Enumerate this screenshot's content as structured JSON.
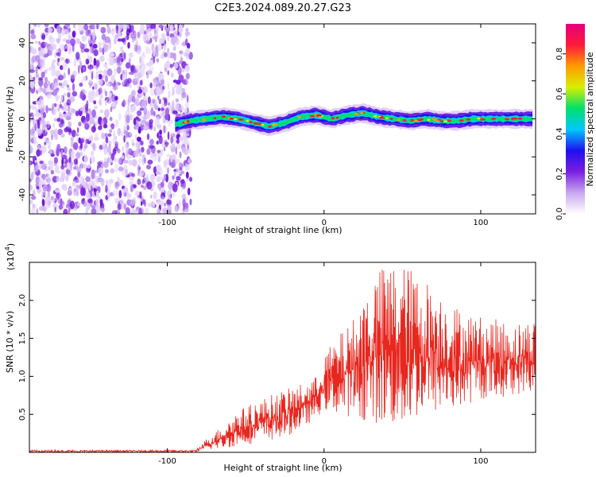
{
  "figure": {
    "title": "C2E3.2024.089.20.27.G23"
  },
  "chart_data": [
    {
      "type": "heatmap",
      "xlabel": "Height of straight line (km)",
      "ylabel": "Frequency (Hz)",
      "xlim": [
        -188,
        135
      ],
      "ylim": [
        -50,
        50
      ],
      "xticks": [
        -100,
        0,
        100
      ],
      "yticks": [
        -40,
        -20,
        0,
        20,
        40
      ],
      "x_tick_labels": [
        "-100",
        "0",
        "100"
      ],
      "y_tick_labels": [
        "-40",
        "-20",
        "0",
        "20",
        "40"
      ],
      "noise_region_x": [
        -188,
        -87
      ],
      "signal_region_x": [
        -95,
        133
      ],
      "frequency_trace": {
        "x": [
          -95,
          -85,
          -75,
          -65,
          -55,
          -45,
          -35,
          -25,
          -15,
          -5,
          5,
          15,
          25,
          35,
          45,
          55,
          65,
          75,
          85,
          95,
          105,
          115,
          125,
          133
        ],
        "y": [
          -3,
          -1,
          0,
          1,
          0,
          -2,
          -4,
          -2,
          1,
          2,
          0,
          2,
          3,
          1,
          0,
          -1,
          0,
          -1,
          -1,
          0,
          0,
          0,
          0,
          0
        ]
      },
      "colorbar": {
        "label": "Normalized spectral amplitude",
        "range": [
          0,
          0.95
        ],
        "ticks": [
          0.0,
          0.2,
          0.4,
          0.6,
          0.8
        ],
        "tick_labels": [
          "0.0",
          "0.2",
          "0.4",
          "0.6",
          "0.8"
        ],
        "colors": [
          "#ffffff",
          "#c9a7f0",
          "#7a1fe0",
          "#1e10f0",
          "#00c8ff",
          "#00e06a",
          "#d8f000",
          "#ff9a00",
          "#ff1a3a",
          "#e5007e"
        ]
      },
      "grid": false
    },
    {
      "type": "line",
      "xlabel": "Height of straight line (km)",
      "ylabel": "SNR (10 * v/v)",
      "y_multiplier": "(x10",
      "y_multiplier_exp": "4",
      "y_multiplier_close": ")",
      "xlim": [
        -188,
        135
      ],
      "ylim": [
        0,
        2.5
      ],
      "xticks": [
        -100,
        0,
        100
      ],
      "yticks": [
        0.5,
        1.0,
        1.5,
        2.0
      ],
      "x_tick_labels": [
        "-100",
        "0",
        "100"
      ],
      "y_tick_labels": [
        "0.5",
        "1.0",
        "1.5",
        "2.0"
      ],
      "line_color": "#e8271f",
      "envelope": {
        "x": [
          -188,
          -150,
          -100,
          -82,
          -75,
          -65,
          -55,
          -45,
          -35,
          -25,
          -15,
          -5,
          0,
          10,
          20,
          30,
          40,
          50,
          60,
          70,
          80,
          90,
          100,
          110,
          120,
          133
        ],
        "low": [
          0.0,
          0.0,
          0.0,
          0.0,
          0.03,
          0.05,
          0.08,
          0.12,
          0.15,
          0.2,
          0.3,
          0.45,
          0.55,
          0.5,
          0.45,
          0.4,
          0.35,
          0.3,
          0.45,
          0.5,
          0.55,
          0.6,
          0.7,
          0.7,
          0.75,
          0.8
        ],
        "high": [
          0.03,
          0.03,
          0.03,
          0.03,
          0.18,
          0.35,
          0.55,
          0.65,
          0.75,
          0.82,
          0.9,
          1.0,
          1.3,
          1.55,
          1.8,
          2.3,
          2.5,
          2.5,
          2.35,
          2.2,
          2.0,
          1.85,
          1.8,
          1.75,
          1.7,
          1.75
        ]
      },
      "grid": false
    }
  ]
}
